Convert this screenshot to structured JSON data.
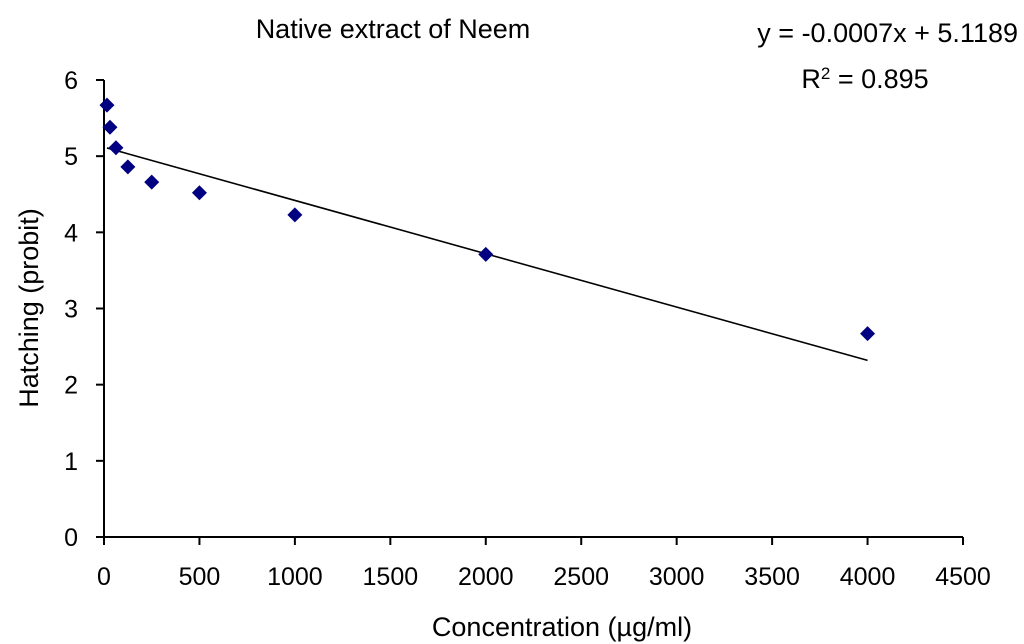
{
  "chart_data": {
    "type": "scatter",
    "title": "Native extract of Neem",
    "xlabel": "Concentration (µg/ml)",
    "ylabel": "Hatching (probit)",
    "xlim": [
      0,
      4500
    ],
    "ylim": [
      0,
      6
    ],
    "x_ticks": [
      0,
      500,
      1000,
      1500,
      2000,
      2500,
      3000,
      3500,
      4000,
      4500
    ],
    "y_ticks": [
      0,
      1,
      2,
      3,
      4,
      5,
      6
    ],
    "grid": false,
    "legend": "none",
    "marker_color": "#000080",
    "series": [
      {
        "marker": "diamond",
        "points": [
          {
            "x": 15.6,
            "y": 5.67
          },
          {
            "x": 31.25,
            "y": 5.38
          },
          {
            "x": 62.5,
            "y": 5.11
          },
          {
            "x": 125,
            "y": 4.86
          },
          {
            "x": 250,
            "y": 4.66
          },
          {
            "x": 500,
            "y": 4.52
          },
          {
            "x": 1000,
            "y": 4.23
          },
          {
            "x": 2000,
            "y": 3.71
          },
          {
            "x": 4000,
            "y": 2.67
          }
        ]
      }
    ],
    "trendline": {
      "type": "linear",
      "slope": -0.0007,
      "intercept": 5.1189,
      "x_range": [
        15.6,
        4000
      ],
      "equation_label": "y = -0.0007x + 5.1189",
      "r2_prefix": "R",
      "r2_superscript": "2",
      "r2_value": " = 0.895"
    }
  }
}
